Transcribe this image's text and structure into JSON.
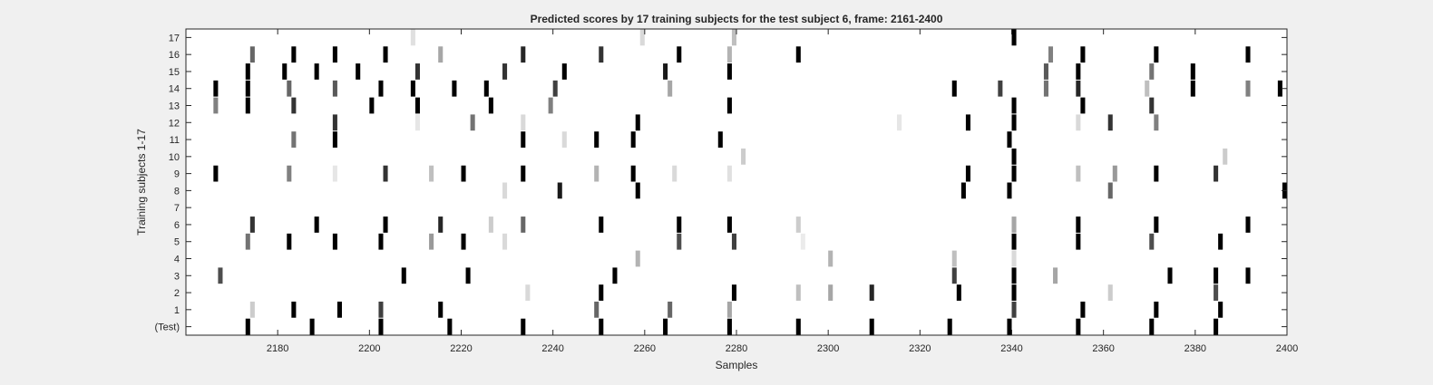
{
  "chart_data": {
    "type": "heatmap",
    "title": "Predicted scores by 17 training subjects for the test subject 6, frame: 2161-2400",
    "xlabel": "Samples",
    "ylabel": "Training subjects 1-17",
    "xlim": [
      2161,
      2400
    ],
    "xticks": [
      2180,
      2200,
      2220,
      2240,
      2260,
      2280,
      2300,
      2320,
      2340,
      2360,
      2380,
      2400
    ],
    "rows": [
      "(Test)",
      "1",
      "2",
      "3",
      "4",
      "5",
      "6",
      "7",
      "8",
      "9",
      "10",
      "11",
      "12",
      "13",
      "14",
      "15",
      "16",
      "17"
    ],
    "colormap": "gray-inverted",
    "value_range": [
      0,
      1
    ],
    "events": [
      {
        "row": "(Test)",
        "marks": [
          [
            2174,
            1
          ],
          [
            2188,
            1
          ],
          [
            2203,
            1
          ],
          [
            2218,
            1
          ],
          [
            2234,
            1
          ],
          [
            2251,
            1
          ],
          [
            2265,
            1
          ],
          [
            2279,
            1
          ],
          [
            2294,
            1
          ],
          [
            2310,
            1
          ],
          [
            2327,
            1
          ],
          [
            2340,
            1
          ],
          [
            2355,
            1
          ],
          [
            2371,
            1
          ],
          [
            2385,
            1
          ]
        ]
      },
      {
        "row": "1",
        "marks": [
          [
            2175,
            0.2
          ],
          [
            2184,
            1
          ],
          [
            2194,
            1
          ],
          [
            2203,
            0.75
          ],
          [
            2216,
            1
          ],
          [
            2250,
            0.6
          ],
          [
            2266,
            0.6
          ],
          [
            2279,
            0.35
          ],
          [
            2341,
            0.75
          ],
          [
            2356,
            1
          ],
          [
            2372,
            1
          ],
          [
            2386,
            1
          ]
        ]
      },
      {
        "row": "2",
        "marks": [
          [
            2235,
            0.15
          ],
          [
            2251,
            1
          ],
          [
            2280,
            1
          ],
          [
            2294,
            0.25
          ],
          [
            2301,
            0.35
          ],
          [
            2310,
            0.85
          ],
          [
            2329,
            1
          ],
          [
            2341,
            1
          ],
          [
            2362,
            0.2
          ],
          [
            2385,
            0.7
          ]
        ]
      },
      {
        "row": "3",
        "marks": [
          [
            2168,
            0.7
          ],
          [
            2208,
            1
          ],
          [
            2222,
            1
          ],
          [
            2254,
            1
          ],
          [
            2328,
            0.75
          ],
          [
            2341,
            1
          ],
          [
            2350,
            0.35
          ],
          [
            2375,
            1
          ],
          [
            2385,
            1
          ],
          [
            2392,
            1
          ]
        ]
      },
      {
        "row": "4",
        "marks": [
          [
            2259,
            0.3
          ],
          [
            2301,
            0.3
          ],
          [
            2328,
            0.25
          ],
          [
            2341,
            0.15
          ]
        ]
      },
      {
        "row": "5",
        "marks": [
          [
            2174,
            0.55
          ],
          [
            2183,
            1
          ],
          [
            2193,
            1
          ],
          [
            2203,
            1
          ],
          [
            2214,
            0.4
          ],
          [
            2221,
            1
          ],
          [
            2230,
            0.15
          ],
          [
            2268,
            0.7
          ],
          [
            2280,
            0.75
          ],
          [
            2295,
            0.08
          ],
          [
            2341,
            1
          ],
          [
            2355,
            1
          ],
          [
            2371,
            0.7
          ],
          [
            2386,
            1
          ]
        ]
      },
      {
        "row": "6",
        "marks": [
          [
            2175,
            0.8
          ],
          [
            2189,
            1
          ],
          [
            2204,
            1
          ],
          [
            2216,
            0.85
          ],
          [
            2227,
            0.2
          ],
          [
            2234,
            0.6
          ],
          [
            2251,
            1
          ],
          [
            2268,
            1
          ],
          [
            2279,
            1
          ],
          [
            2294,
            0.2
          ],
          [
            2341,
            0.35
          ],
          [
            2355,
            1
          ],
          [
            2372,
            1
          ],
          [
            2392,
            1
          ]
        ]
      },
      {
        "row": "8",
        "marks": [
          [
            2230,
            0.15
          ],
          [
            2242,
            0.9
          ],
          [
            2259,
            1
          ],
          [
            2330,
            1
          ],
          [
            2340,
            1
          ],
          [
            2362,
            0.6
          ],
          [
            2400,
            1
          ]
        ]
      },
      {
        "row": "9",
        "marks": [
          [
            2167,
            1
          ],
          [
            2183,
            0.5
          ],
          [
            2193,
            0.1
          ],
          [
            2204,
            0.8
          ],
          [
            2214,
            0.25
          ],
          [
            2221,
            1
          ],
          [
            2234,
            1
          ],
          [
            2250,
            0.3
          ],
          [
            2258,
            1
          ],
          [
            2267,
            0.15
          ],
          [
            2279,
            0.12
          ],
          [
            2331,
            1
          ],
          [
            2341,
            1
          ],
          [
            2355,
            0.25
          ],
          [
            2363,
            0.4
          ],
          [
            2372,
            1
          ],
          [
            2385,
            0.8
          ]
        ]
      },
      {
        "row": "10",
        "marks": [
          [
            2282,
            0.2
          ],
          [
            2341,
            1
          ],
          [
            2387,
            0.2
          ]
        ]
      },
      {
        "row": "11",
        "marks": [
          [
            2184,
            0.55
          ],
          [
            2193,
            1
          ],
          [
            2234,
            1
          ],
          [
            2243,
            0.15
          ],
          [
            2250,
            1
          ],
          [
            2258,
            1
          ],
          [
            2277,
            1
          ],
          [
            2340,
            1
          ]
        ]
      },
      {
        "row": "12",
        "marks": [
          [
            2193,
            0.8
          ],
          [
            2211,
            0.1
          ],
          [
            2223,
            0.55
          ],
          [
            2234,
            0.15
          ],
          [
            2259,
            1
          ],
          [
            2316,
            0.1
          ],
          [
            2331,
            1
          ],
          [
            2341,
            1
          ],
          [
            2355,
            0.15
          ],
          [
            2362,
            0.8
          ],
          [
            2372,
            0.5
          ]
        ]
      },
      {
        "row": "13",
        "marks": [
          [
            2167,
            0.5
          ],
          [
            2174,
            1
          ],
          [
            2184,
            0.8
          ],
          [
            2201,
            1
          ],
          [
            2211,
            1
          ],
          [
            2227,
            1
          ],
          [
            2240,
            0.5
          ],
          [
            2279,
            1
          ],
          [
            2341,
            1
          ],
          [
            2356,
            1
          ],
          [
            2371,
            0.8
          ]
        ]
      },
      {
        "row": "14",
        "marks": [
          [
            2167,
            1
          ],
          [
            2174,
            1
          ],
          [
            2183,
            0.6
          ],
          [
            2193,
            0.65
          ],
          [
            2203,
            1
          ],
          [
            2210,
            1
          ],
          [
            2219,
            1
          ],
          [
            2226,
            1
          ],
          [
            2241,
            0.75
          ],
          [
            2266,
            0.35
          ],
          [
            2328,
            1
          ],
          [
            2338,
            0.75
          ],
          [
            2348,
            0.55
          ],
          [
            2355,
            0.85
          ],
          [
            2370,
            0.25
          ],
          [
            2380,
            1
          ],
          [
            2392,
            0.5
          ],
          [
            2399,
            1
          ]
        ]
      },
      {
        "row": "15",
        "marks": [
          [
            2174,
            1
          ],
          [
            2182,
            1
          ],
          [
            2189,
            1
          ],
          [
            2198,
            1
          ],
          [
            2211,
            0.8
          ],
          [
            2230,
            0.8
          ],
          [
            2243,
            1
          ],
          [
            2265,
            0.9
          ],
          [
            2279,
            1
          ],
          [
            2348,
            0.65
          ],
          [
            2355,
            1
          ],
          [
            2371,
            0.55
          ],
          [
            2380,
            1
          ]
        ]
      },
      {
        "row": "16",
        "marks": [
          [
            2175,
            0.6
          ],
          [
            2184,
            1
          ],
          [
            2193,
            1
          ],
          [
            2204,
            1
          ],
          [
            2216,
            0.35
          ],
          [
            2234,
            0.85
          ],
          [
            2251,
            0.8
          ],
          [
            2268,
            1
          ],
          [
            2279,
            0.3
          ],
          [
            2294,
            1
          ],
          [
            2349,
            0.5
          ],
          [
            2356,
            1
          ],
          [
            2372,
            1
          ],
          [
            2392,
            1
          ]
        ]
      },
      {
        "row": "17",
        "marks": [
          [
            2210,
            0.12
          ],
          [
            2260,
            0.15
          ],
          [
            2280,
            0.25
          ],
          [
            2341,
            1
          ]
        ]
      }
    ]
  }
}
